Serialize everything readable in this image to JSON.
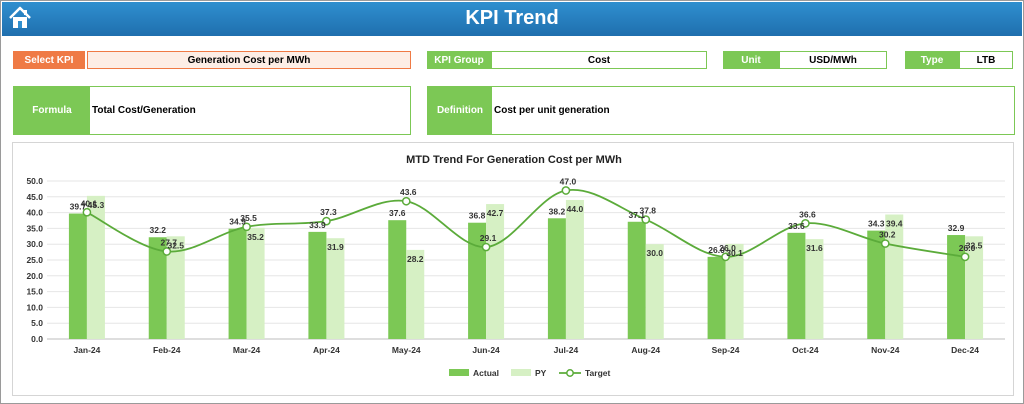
{
  "header": {
    "title": "KPI Trend"
  },
  "selectors": {
    "select_kpi_label": "Select KPI",
    "select_kpi_value": "Generation Cost per MWh",
    "kpi_group_label": "KPI Group",
    "kpi_group_value": "Cost",
    "unit_label": "Unit",
    "unit_value": "USD/MWh",
    "type_label": "Type",
    "type_value": "LTB"
  },
  "info": {
    "formula_label": "Formula",
    "formula_value": "Total Cost/Generation",
    "definition_label": "Definition",
    "definition_value": "Cost per unit generation"
  },
  "colors": {
    "actual": "#7cc855",
    "py": "#d6f0c4",
    "target": "#5bab3a",
    "header": "#2a86c4",
    "select": "#ef7a45"
  },
  "chart_data": {
    "type": "bar",
    "title": "MTD Trend For Generation Cost per MWh",
    "categories": [
      "Jan-24",
      "Feb-24",
      "Mar-24",
      "Apr-24",
      "May-24",
      "Jun-24",
      "Jul-24",
      "Aug-24",
      "Sep-24",
      "Oct-24",
      "Nov-24",
      "Dec-24"
    ],
    "ylim": [
      0,
      50
    ],
    "yticks": [
      "0.0",
      "5.0",
      "10.0",
      "15.0",
      "20.0",
      "25.0",
      "30.0",
      "35.0",
      "40.0",
      "45.0",
      "50.0"
    ],
    "grid": true,
    "legend_position": "bottom",
    "series": [
      {
        "name": "Actual",
        "type": "bar",
        "values": [
          39.7,
          32.2,
          34.9,
          33.9,
          37.6,
          36.8,
          38.2,
          37.1,
          26.0,
          33.6,
          34.3,
          32.9
        ]
      },
      {
        "name": "PY",
        "type": "bar",
        "values": [
          45.3,
          32.5,
          35.2,
          31.9,
          28.2,
          42.7,
          44.0,
          30.0,
          30.1,
          31.6,
          39.4,
          32.5
        ]
      },
      {
        "name": "Target",
        "type": "line",
        "values": [
          40.1,
          27.7,
          35.5,
          37.3,
          43.6,
          29.1,
          47.0,
          37.8,
          26.0,
          36.6,
          30.2,
          26.0
        ]
      }
    ]
  }
}
